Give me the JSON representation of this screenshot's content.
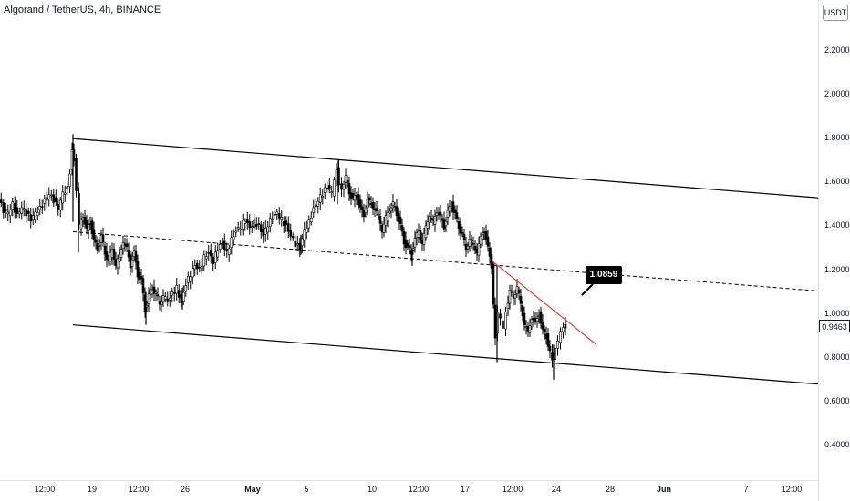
{
  "header": {
    "title": "Algorand / TetherUS, 4h, BINANCE"
  },
  "price_axis": {
    "currency": "USDT"
  },
  "annotation": {
    "label": "1.0859"
  },
  "last_price": {
    "label": "0.9463",
    "color": "#131722"
  },
  "colors": {
    "candle": "#000000",
    "channel_line": "#000000",
    "midline": "#000000",
    "trendline": "#e03c3c",
    "axis_text": "#131722"
  },
  "chart_data": {
    "type": "candlestick",
    "title": "Algorand / TetherUS, 4h, BINANCE",
    "symbol": "ALGO/USDT",
    "interval": "4h",
    "exchange": "BINANCE",
    "ylim": [
      0.2,
      2.4
    ],
    "yticks": [
      "0.4000",
      "0.6000",
      "0.8000",
      "1.0000",
      "1.2000",
      "1.4000",
      "1.6000",
      "1.8000",
      "2.0000",
      "2.2000"
    ],
    "xticks": [
      {
        "label": "12:00",
        "bold": false
      },
      {
        "label": "19",
        "bold": false
      },
      {
        "label": "12:00",
        "bold": false
      },
      {
        "label": "26",
        "bold": false
      },
      {
        "label": "May",
        "bold": true
      },
      {
        "label": "5",
        "bold": false
      },
      {
        "label": "10",
        "bold": false
      },
      {
        "label": "12:00",
        "bold": false
      },
      {
        "label": "17",
        "bold": false
      },
      {
        "label": "12:00",
        "bold": false
      },
      {
        "label": "24",
        "bold": false
      },
      {
        "label": "28",
        "bold": false
      },
      {
        "label": "Jun",
        "bold": true
      },
      {
        "label": "7",
        "bold": false
      },
      {
        "label": "12:00",
        "bold": false
      }
    ],
    "price_path": [
      [
        0,
        1.52
      ],
      [
        5,
        1.47
      ],
      [
        10,
        1.46
      ],
      [
        15,
        1.5
      ],
      [
        20,
        1.45
      ],
      [
        25,
        1.49
      ],
      [
        30,
        1.46
      ],
      [
        35,
        1.43
      ],
      [
        40,
        1.46
      ],
      [
        45,
        1.48
      ],
      [
        50,
        1.52
      ],
      [
        55,
        1.55
      ],
      [
        60,
        1.52
      ],
      [
        65,
        1.48
      ],
      [
        70,
        1.55
      ],
      [
        75,
        1.57
      ],
      [
        78,
        1.65
      ],
      [
        80,
        1.76
      ],
      [
        82,
        1.7
      ],
      [
        85,
        1.55
      ],
      [
        88,
        1.4
      ],
      [
        92,
        1.45
      ],
      [
        96,
        1.38
      ],
      [
        100,
        1.42
      ],
      [
        104,
        1.33
      ],
      [
        108,
        1.3
      ],
      [
        112,
        1.35
      ],
      [
        116,
        1.28
      ],
      [
        120,
        1.24
      ],
      [
        124,
        1.3
      ],
      [
        128,
        1.22
      ],
      [
        132,
        1.27
      ],
      [
        136,
        1.33
      ],
      [
        140,
        1.3
      ],
      [
        144,
        1.22
      ],
      [
        148,
        1.28
      ],
      [
        152,
        1.18
      ],
      [
        156,
        1.15
      ],
      [
        160,
        1.02
      ],
      [
        164,
        1.08
      ],
      [
        168,
        1.12
      ],
      [
        172,
        1.09
      ],
      [
        176,
        1.05
      ],
      [
        180,
        1.08
      ],
      [
        185,
        1.06
      ],
      [
        190,
        1.09
      ],
      [
        195,
        1.12
      ],
      [
        200,
        1.05
      ],
      [
        205,
        1.14
      ],
      [
        210,
        1.18
      ],
      [
        215,
        1.22
      ],
      [
        220,
        1.2
      ],
      [
        225,
        1.26
      ],
      [
        230,
        1.28
      ],
      [
        235,
        1.24
      ],
      [
        240,
        1.3
      ],
      [
        245,
        1.32
      ],
      [
        250,
        1.28
      ],
      [
        255,
        1.34
      ],
      [
        260,
        1.38
      ],
      [
        265,
        1.4
      ],
      [
        270,
        1.43
      ],
      [
        275,
        1.39
      ],
      [
        280,
        1.42
      ],
      [
        285,
        1.4
      ],
      [
        290,
        1.36
      ],
      [
        295,
        1.41
      ],
      [
        300,
        1.44
      ],
      [
        305,
        1.46
      ],
      [
        310,
        1.43
      ],
      [
        315,
        1.4
      ],
      [
        320,
        1.36
      ],
      [
        325,
        1.32
      ],
      [
        330,
        1.3
      ],
      [
        335,
        1.38
      ],
      [
        340,
        1.42
      ],
      [
        345,
        1.48
      ],
      [
        350,
        1.52
      ],
      [
        355,
        1.55
      ],
      [
        360,
        1.58
      ],
      [
        365,
        1.55
      ],
      [
        368,
        1.62
      ],
      [
        370,
        1.66
      ],
      [
        373,
        1.6
      ],
      [
        376,
        1.58
      ],
      [
        380,
        1.62
      ],
      [
        384,
        1.56
      ],
      [
        388,
        1.52
      ],
      [
        392,
        1.54
      ],
      [
        396,
        1.48
      ],
      [
        400,
        1.45
      ],
      [
        404,
        1.52
      ],
      [
        408,
        1.5
      ],
      [
        412,
        1.48
      ],
      [
        416,
        1.45
      ],
      [
        420,
        1.38
      ],
      [
        424,
        1.44
      ],
      [
        428,
        1.48
      ],
      [
        432,
        1.5
      ],
      [
        436,
        1.46
      ],
      [
        440,
        1.4
      ],
      [
        444,
        1.33
      ],
      [
        448,
        1.3
      ],
      [
        452,
        1.28
      ],
      [
        456,
        1.34
      ],
      [
        460,
        1.38
      ],
      [
        464,
        1.32
      ],
      [
        468,
        1.4
      ],
      [
        472,
        1.45
      ],
      [
        476,
        1.42
      ],
      [
        480,
        1.47
      ],
      [
        484,
        1.44
      ],
      [
        488,
        1.4
      ],
      [
        492,
        1.46
      ],
      [
        496,
        1.5
      ],
      [
        500,
        1.45
      ],
      [
        504,
        1.4
      ],
      [
        508,
        1.36
      ],
      [
        512,
        1.3
      ],
      [
        516,
        1.34
      ],
      [
        520,
        1.32
      ],
      [
        524,
        1.28
      ],
      [
        528,
        1.35
      ],
      [
        532,
        1.38
      ],
      [
        536,
        1.3
      ],
      [
        540,
        1.22
      ],
      [
        542,
        1.05
      ],
      [
        544,
        0.9
      ],
      [
        547,
        1.0
      ],
      [
        550,
        0.98
      ],
      [
        553,
        0.94
      ],
      [
        556,
        1.02
      ],
      [
        560,
        1.1
      ],
      [
        564,
        1.08
      ],
      [
        568,
        1.12
      ],
      [
        572,
        1.05
      ],
      [
        576,
        0.95
      ],
      [
        580,
        0.92
      ],
      [
        584,
        0.98
      ],
      [
        588,
        0.96
      ],
      [
        592,
        1.0
      ],
      [
        596,
        0.92
      ],
      [
        600,
        0.9
      ],
      [
        604,
        0.82
      ],
      [
        607,
        0.78
      ],
      [
        610,
        0.84
      ],
      [
        613,
        0.88
      ],
      [
        616,
        0.93
      ],
      [
        619,
        0.95
      ],
      [
        621,
        0.946
      ]
    ],
    "wicks": [
      {
        "x": 80,
        "low": 1.42,
        "high": 1.82
      },
      {
        "x": 86,
        "low": 1.28,
        "high": 1.6
      },
      {
        "x": 160,
        "low": 0.95,
        "high": 1.1
      },
      {
        "x": 200,
        "low": 1.02,
        "high": 1.12
      },
      {
        "x": 330,
        "low": 1.27,
        "high": 1.36
      },
      {
        "x": 370,
        "low": 1.5,
        "high": 1.7
      },
      {
        "x": 452,
        "low": 1.22,
        "high": 1.3
      },
      {
        "x": 545,
        "low": 0.78,
        "high": 1.22
      },
      {
        "x": 607,
        "low": 0.7,
        "high": 0.86
      }
    ],
    "channel": {
      "upper": [
        [
          80,
          1.8
        ],
        [
          897,
          1.53
        ]
      ],
      "lower": [
        [
          80,
          0.95
        ],
        [
          897,
          0.68
        ]
      ],
      "mid": [
        [
          80,
          1.375
        ],
        [
          897,
          1.105
        ]
      ]
    },
    "trendline": [
      [
        540,
        1.24
      ],
      [
        654,
        0.86
      ]
    ],
    "annotation_value": 1.0859,
    "last_value": 0.9463
  }
}
